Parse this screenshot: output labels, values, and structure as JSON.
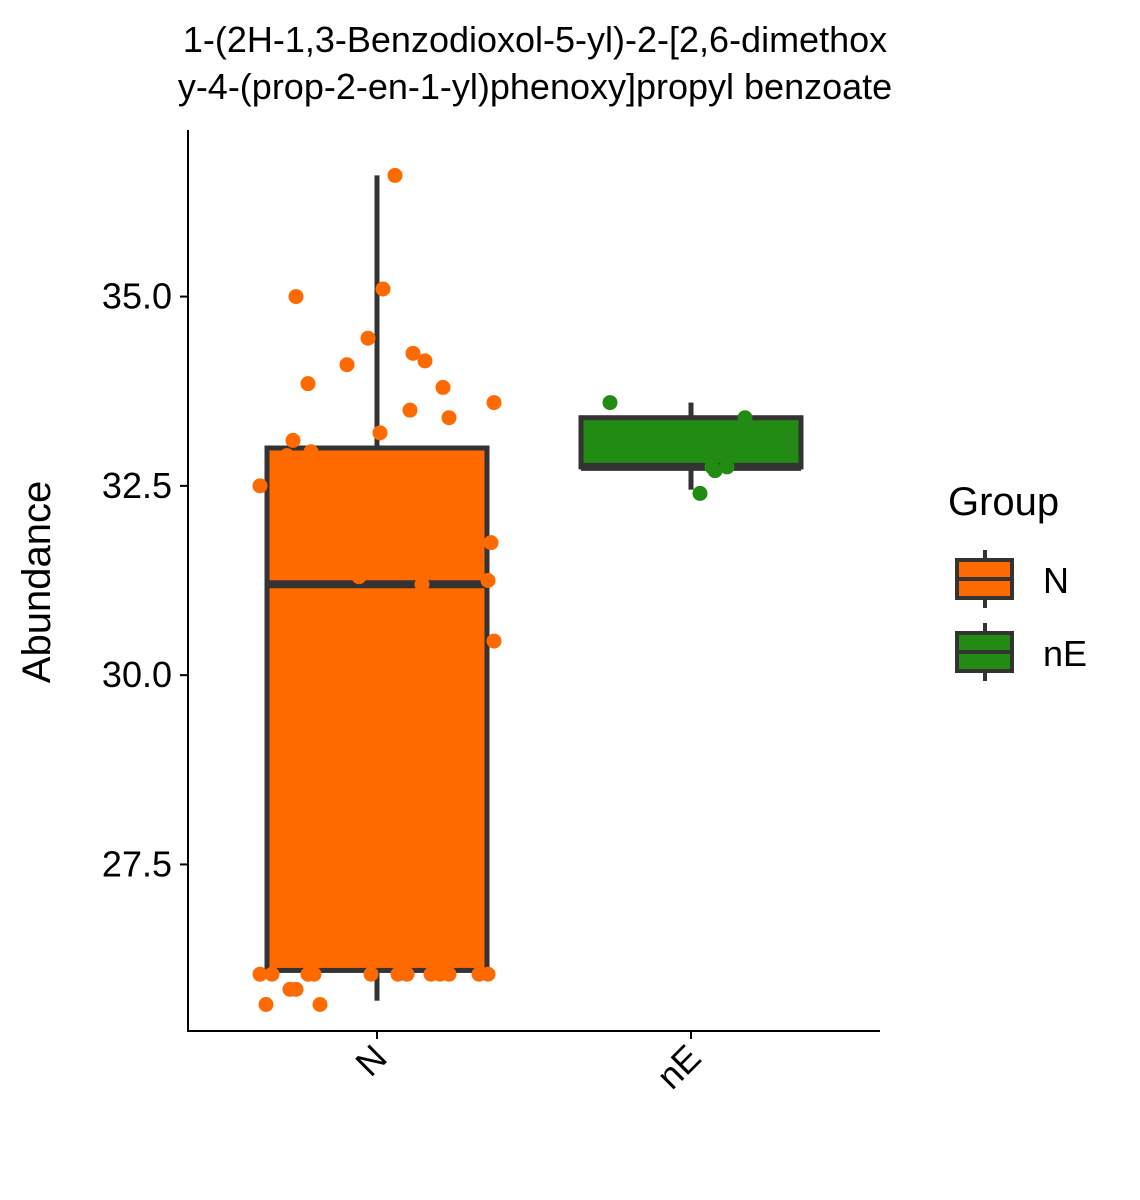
{
  "chart_data": {
    "type": "box",
    "title": [
      "1-(2H-1,3-Benzodioxol-5-yl)-2-[2,6-dimethox",
      "y-4-(prop-2-en-1-yl)phenoxy]propyl benzoate"
    ],
    "xlabel": "",
    "ylabel": "Abundance",
    "categories": [
      "N",
      "nE"
    ],
    "ylim": [
      25.3,
      37.2
    ],
    "yticks": [
      27.5,
      30.0,
      32.5,
      35.0
    ],
    "ytick_labels": [
      "27.5",
      "30.0",
      "32.5",
      "35.0"
    ],
    "grid": false,
    "legend": {
      "title": "Group",
      "position": "right",
      "entries": [
        {
          "label": "N",
          "color": "#FF6A00"
        },
        {
          "label": "nE",
          "color": "#228B14"
        }
      ]
    },
    "series": [
      {
        "name": "N",
        "color": "#FF6A00",
        "box": {
          "min": 25.7,
          "q1": 26.1,
          "median": 31.2,
          "q3": 33.0,
          "max": 36.6
        },
        "points": [
          {
            "x": -0.39,
            "y": 26.05
          },
          {
            "x": -0.35,
            "y": 26.05
          },
          {
            "x": -0.23,
            "y": 26.05
          },
          {
            "x": -0.21,
            "y": 26.05
          },
          {
            "x": -0.02,
            "y": 26.05
          },
          {
            "x": 0.07,
            "y": 26.05
          },
          {
            "x": 0.1,
            "y": 26.05
          },
          {
            "x": 0.18,
            "y": 26.05
          },
          {
            "x": 0.21,
            "y": 26.05
          },
          {
            "x": 0.24,
            "y": 26.05
          },
          {
            "x": 0.34,
            "y": 26.05
          },
          {
            "x": 0.37,
            "y": 26.05
          },
          {
            "x": -0.37,
            "y": 25.65
          },
          {
            "x": -0.29,
            "y": 25.85
          },
          {
            "x": -0.27,
            "y": 25.85
          },
          {
            "x": -0.19,
            "y": 25.65
          },
          {
            "x": -0.39,
            "y": 32.5
          },
          {
            "x": -0.33,
            "y": 32.85
          },
          {
            "x": -0.3,
            "y": 32.9
          },
          {
            "x": -0.28,
            "y": 33.1
          },
          {
            "x": -0.22,
            "y": 32.95
          },
          {
            "x": 0.01,
            "y": 33.2
          },
          {
            "x": -0.06,
            "y": 31.3
          },
          {
            "x": 0.15,
            "y": 31.2
          },
          {
            "x": 0.38,
            "y": 31.75
          },
          {
            "x": 0.37,
            "y": 31.25
          },
          {
            "x": 0.39,
            "y": 30.45
          },
          {
            "x": 0.11,
            "y": 33.5
          },
          {
            "x": 0.24,
            "y": 33.4
          },
          {
            "x": 0.39,
            "y": 33.6
          },
          {
            "x": 0.22,
            "y": 33.8
          },
          {
            "x": -0.23,
            "y": 33.85
          },
          {
            "x": -0.1,
            "y": 34.1
          },
          {
            "x": -0.03,
            "y": 34.45
          },
          {
            "x": 0.12,
            "y": 34.25
          },
          {
            "x": 0.16,
            "y": 34.15
          },
          {
            "x": -0.27,
            "y": 35.0
          },
          {
            "x": 0.02,
            "y": 35.1
          },
          {
            "x": 0.06,
            "y": 36.6
          }
        ]
      },
      {
        "name": "nE",
        "color": "#228B14",
        "box": {
          "min": 32.45,
          "q1": 32.75,
          "median": 32.75,
          "q3": 33.4,
          "max": 33.6
        },
        "points": [
          {
            "x": -0.27,
            "y": 33.6
          },
          {
            "x": 0.18,
            "y": 33.4
          },
          {
            "x": 0.07,
            "y": 32.75
          },
          {
            "x": 0.12,
            "y": 32.75
          },
          {
            "x": 0.08,
            "y": 32.7
          },
          {
            "x": 0.03,
            "y": 32.4
          }
        ]
      }
    ]
  }
}
